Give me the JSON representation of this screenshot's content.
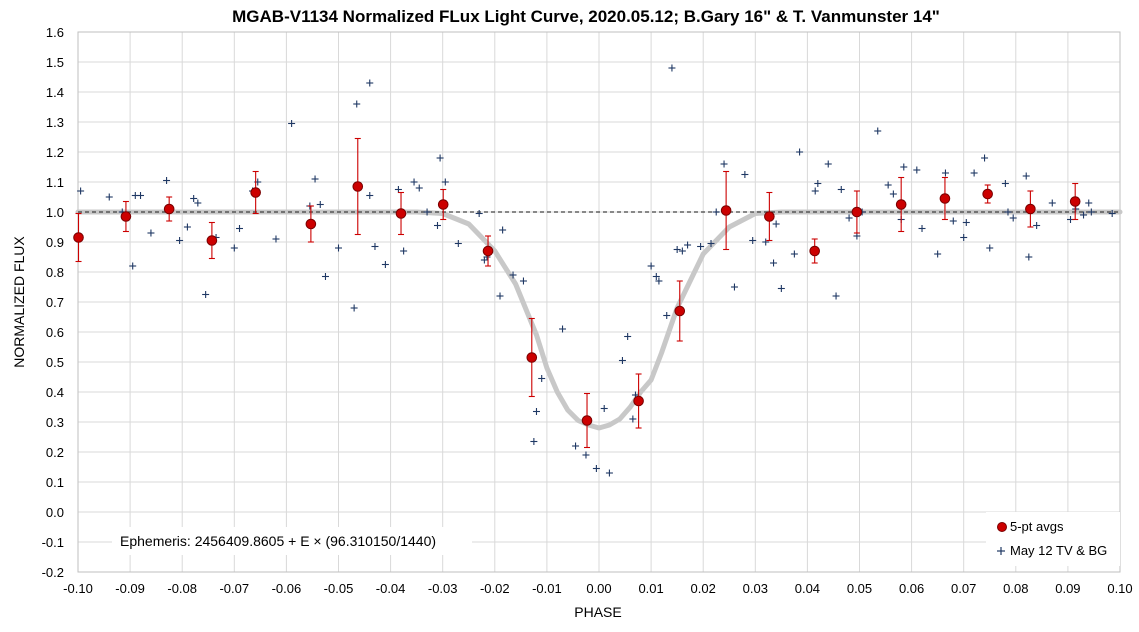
{
  "chart_data": {
    "type": "scatter",
    "title": "MGAB-V1134 Normalized FLux Light Curve, 2020.05.12; B.Gary 16\" & T. Vanmunster 14\"",
    "xlabel": "PHASE",
    "ylabel": "NORMALIZED FLUX",
    "xlim": [
      -0.1,
      0.1
    ],
    "ylim": [
      -0.2,
      1.6
    ],
    "x_ticks": [
      -0.1,
      -0.09,
      -0.08,
      -0.07,
      -0.06,
      -0.05,
      -0.04,
      -0.03,
      -0.02,
      -0.01,
      0.0,
      0.01,
      0.02,
      0.03,
      0.04,
      0.05,
      0.06,
      0.07,
      0.08,
      0.09,
      0.1
    ],
    "x_tick_labels": [
      "-0.10",
      "-0.09",
      "-0.08",
      "-0.07",
      "-0.06",
      "-0.05",
      "-0.04",
      "-0.03",
      "-0.02",
      "-0.01",
      "0.00",
      "0.01",
      "0.02",
      "0.03",
      "0.04",
      "0.05",
      "0.06",
      "0.07",
      "0.08",
      "0.09",
      "0.10"
    ],
    "y_ticks": [
      -0.2,
      -0.1,
      0.0,
      0.1,
      0.2,
      0.3,
      0.4,
      0.5,
      0.6,
      0.7,
      0.8,
      0.9,
      1.0,
      1.1,
      1.2,
      1.3,
      1.4,
      1.5,
      1.6
    ],
    "y_tick_labels": [
      "-0.2",
      "-0.1",
      "0.0",
      "0.1",
      "0.2",
      "0.3",
      "0.4",
      "0.5",
      "0.6",
      "0.7",
      "0.8",
      "0.9",
      "1.0",
      "1.1",
      "1.2",
      "1.3",
      "1.4",
      "1.5",
      "1.6"
    ],
    "grid": true,
    "legend_position": "bottom-right",
    "annotation": "Ephemeris: 2456409.8605 + E × (96.310150/1440)",
    "colors": {
      "avg_fill": "#cc0000",
      "avg_edge": "#7a0000",
      "errbar": "#cc0000",
      "obs": "#1f3864",
      "model": "#c8c8c8",
      "reference": "#404040"
    },
    "reference_line": 1.0,
    "series": [
      {
        "name": "5-pt avgs",
        "marker": "circle",
        "x": [
          -0.0999,
          -0.0908,
          -0.0825,
          -0.0743,
          -0.0659,
          -0.0553,
          -0.0463,
          -0.038,
          -0.0299,
          -0.0213,
          -0.0129,
          -0.0023,
          0.0076,
          0.0155,
          0.0244,
          0.0327,
          0.0414,
          0.0495,
          0.058,
          0.0664,
          0.0746,
          0.0828,
          0.0914
        ],
        "y": [
          0.915,
          0.985,
          1.01,
          0.905,
          1.065,
          0.96,
          1.085,
          0.995,
          1.025,
          0.87,
          0.515,
          0.305,
          0.37,
          0.67,
          1.005,
          0.985,
          0.87,
          1.0,
          1.025,
          1.045,
          1.06,
          1.01,
          1.035
        ],
        "err": [
          0.08,
          0.05,
          0.04,
          0.06,
          0.07,
          0.06,
          0.16,
          0.07,
          0.05,
          0.05,
          0.13,
          0.09,
          0.09,
          0.1,
          0.13,
          0.08,
          0.04,
          0.07,
          0.09,
          0.07,
          0.03,
          0.06,
          0.06
        ]
      },
      {
        "name": "May 12 TV & BG",
        "marker": "plus",
        "x": [
          -0.0995,
          -0.094,
          -0.0915,
          -0.089,
          -0.0895,
          -0.088,
          -0.086,
          -0.083,
          -0.0805,
          -0.079,
          -0.0778,
          -0.077,
          -0.0755,
          -0.0735,
          -0.07,
          -0.069,
          -0.0665,
          -0.0655,
          -0.062,
          -0.059,
          -0.0555,
          -0.0545,
          -0.0535,
          -0.0525,
          -0.05,
          -0.047,
          -0.0465,
          -0.044,
          -0.043,
          -0.044,
          -0.041,
          -0.0385,
          -0.0375,
          -0.0355,
          -0.0345,
          -0.033,
          -0.031,
          -0.0305,
          -0.0295,
          -0.027,
          -0.023,
          -0.022,
          -0.0215,
          -0.019,
          -0.0185,
          -0.0165,
          -0.0145,
          -0.0125,
          -0.012,
          -0.011,
          -0.007,
          -0.0045,
          -0.0025,
          -0.0005,
          0.001,
          0.002,
          0.0045,
          0.0055,
          0.0065,
          0.007,
          0.01,
          0.011,
          0.0115,
          0.013,
          0.014,
          0.015,
          0.016,
          0.017,
          0.0195,
          0.0215,
          0.0225,
          0.024,
          0.026,
          0.028,
          0.0295,
          0.032,
          0.0335,
          0.034,
          0.035,
          0.0375,
          0.0385,
          0.0415,
          0.042,
          0.044,
          0.0455,
          0.0465,
          0.048,
          0.0495,
          0.0505,
          0.0535,
          0.0555,
          0.0565,
          0.058,
          0.0585,
          0.061,
          0.062,
          0.065,
          0.0665,
          0.068,
          0.07,
          0.0705,
          0.072,
          0.074,
          0.075,
          0.078,
          0.0785,
          0.0795,
          0.082,
          0.0825,
          0.084,
          0.087,
          0.0905,
          0.0915,
          0.093,
          0.094,
          0.0945,
          0.0985
        ],
        "y": [
          1.07,
          1.05,
          1.0,
          1.055,
          0.82,
          1.055,
          0.93,
          1.105,
          0.905,
          0.95,
          1.045,
          1.03,
          0.725,
          0.915,
          0.88,
          0.945,
          1.07,
          1.1,
          0.91,
          1.295,
          1.02,
          1.11,
          1.025,
          0.785,
          0.88,
          0.68,
          1.36,
          1.43,
          0.885,
          1.055,
          0.825,
          1.075,
          0.87,
          1.1,
          1.08,
          1.0,
          0.955,
          1.18,
          1.1,
          0.895,
          0.995,
          0.84,
          0.85,
          0.72,
          0.94,
          0.79,
          0.77,
          0.235,
          0.335,
          0.445,
          0.61,
          0.22,
          0.19,
          0.145,
          0.345,
          0.13,
          0.505,
          0.585,
          0.31,
          0.39,
          0.82,
          0.785,
          0.77,
          0.655,
          1.48,
          0.875,
          0.87,
          0.89,
          0.885,
          0.895,
          1.0,
          1.16,
          0.75,
          1.125,
          0.905,
          0.9,
          0.83,
          0.96,
          0.745,
          0.86,
          1.2,
          1.07,
          1.095,
          1.16,
          0.72,
          1.075,
          0.98,
          0.92,
          1.0,
          1.27,
          1.09,
          1.06,
          0.975,
          1.15,
          1.14,
          0.945,
          0.86,
          1.13,
          0.97,
          0.915,
          0.965,
          1.13,
          1.18,
          0.88,
          1.095,
          1.0,
          0.98,
          1.12,
          0.85,
          0.955,
          1.03,
          0.975,
          1.01,
          0.99,
          1.03,
          1.0,
          0.995
        ]
      },
      {
        "name": "model",
        "type": "line",
        "x": [
          -0.1,
          -0.035,
          -0.03,
          -0.025,
          -0.02,
          -0.016,
          -0.012,
          -0.01,
          -0.008,
          -0.006,
          -0.004,
          -0.002,
          0.0,
          0.002,
          0.004,
          0.006,
          0.008,
          0.01,
          0.012,
          0.015,
          0.02,
          0.025,
          0.03,
          0.035,
          0.1
        ],
        "y": [
          1.0,
          1.0,
          0.995,
          0.96,
          0.87,
          0.76,
          0.59,
          0.48,
          0.4,
          0.34,
          0.305,
          0.29,
          0.28,
          0.29,
          0.31,
          0.35,
          0.4,
          0.44,
          0.53,
          0.68,
          0.86,
          0.95,
          0.995,
          1.0,
          1.0
        ]
      }
    ]
  }
}
